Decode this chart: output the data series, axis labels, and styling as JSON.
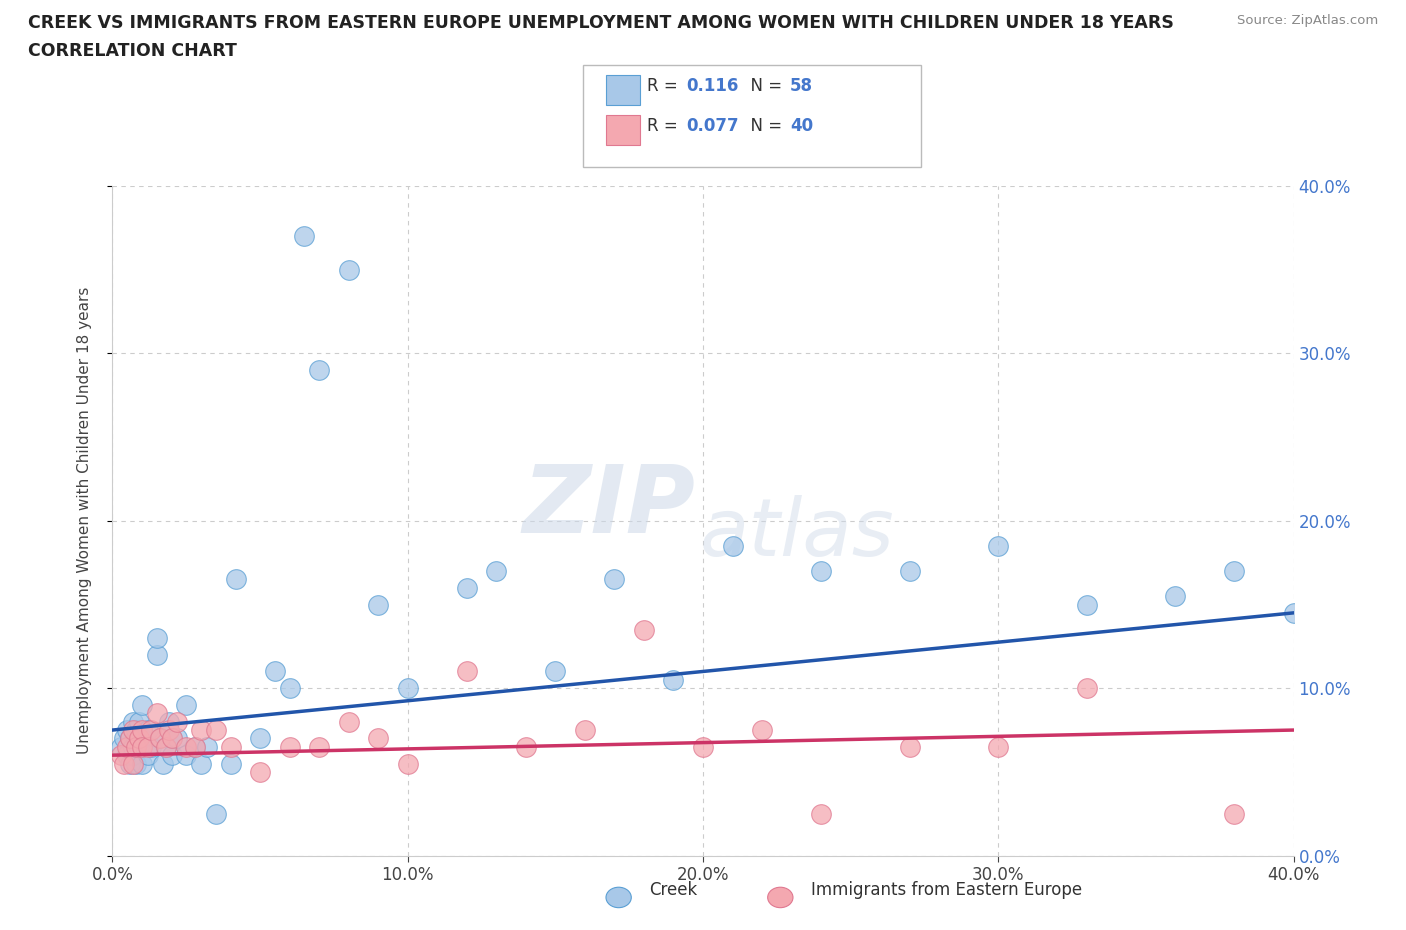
{
  "title_line1": "CREEK VS IMMIGRANTS FROM EASTERN EUROPE UNEMPLOYMENT AMONG WOMEN WITH CHILDREN UNDER 18 YEARS",
  "title_line2": "CORRELATION CHART",
  "source_text": "Source: ZipAtlas.com",
  "ylabel": "Unemployment Among Women with Children Under 18 years",
  "xlim": [
    0.0,
    0.4
  ],
  "ylim": [
    0.0,
    0.4
  ],
  "xtick_labels": [
    "0.0%",
    "10.0%",
    "20.0%",
    "30.0%",
    "40.0%"
  ],
  "ytick_labels_right": [
    "0.0%",
    "10.0%",
    "20.0%",
    "30.0%",
    "40.0%"
  ],
  "xtick_vals": [
    0.0,
    0.1,
    0.2,
    0.3,
    0.4
  ],
  "ytick_vals": [
    0.0,
    0.1,
    0.2,
    0.3,
    0.4
  ],
  "creek_color": "#a8c8e8",
  "immigrant_color": "#f4a8b0",
  "creek_edge_color": "#5a9fd4",
  "immigrant_edge_color": "#e07890",
  "line_creek_color": "#2255aa",
  "line_immigrant_color": "#cc3366",
  "R_creek": 0.116,
  "N_creek": 58,
  "R_immigrant": 0.077,
  "N_immigrant": 40,
  "legend_label_creek": "Creek",
  "legend_label_immigrant": "Immigrants from Eastern Europe",
  "watermark_zip": "ZIP",
  "watermark_atlas": "atlas",
  "background_color": "#ffffff",
  "grid_color": "#cccccc",
  "right_tick_color": "#4477cc",
  "creek_line_start": 0.075,
  "creek_line_end": 0.145,
  "immigrant_line_start": 0.06,
  "immigrant_line_end": 0.075,
  "creek_x": [
    0.003,
    0.004,
    0.005,
    0.005,
    0.006,
    0.006,
    0.007,
    0.007,
    0.007,
    0.008,
    0.008,
    0.008,
    0.009,
    0.009,
    0.01,
    0.01,
    0.01,
    0.012,
    0.012,
    0.013,
    0.015,
    0.015,
    0.016,
    0.017,
    0.018,
    0.019,
    0.02,
    0.02,
    0.022,
    0.025,
    0.025,
    0.028,
    0.03,
    0.032,
    0.035,
    0.04,
    0.042,
    0.05,
    0.055,
    0.06,
    0.065,
    0.07,
    0.08,
    0.09,
    0.1,
    0.12,
    0.13,
    0.15,
    0.17,
    0.19,
    0.21,
    0.24,
    0.27,
    0.3,
    0.33,
    0.36,
    0.38,
    0.4
  ],
  "creek_y": [
    0.065,
    0.07,
    0.06,
    0.075,
    0.055,
    0.07,
    0.06,
    0.065,
    0.08,
    0.055,
    0.07,
    0.075,
    0.065,
    0.08,
    0.055,
    0.07,
    0.09,
    0.06,
    0.075,
    0.065,
    0.12,
    0.13,
    0.07,
    0.055,
    0.065,
    0.08,
    0.06,
    0.07,
    0.07,
    0.06,
    0.09,
    0.065,
    0.055,
    0.065,
    0.025,
    0.055,
    0.165,
    0.07,
    0.11,
    0.1,
    0.37,
    0.29,
    0.35,
    0.15,
    0.1,
    0.16,
    0.17,
    0.11,
    0.165,
    0.105,
    0.185,
    0.17,
    0.17,
    0.185,
    0.15,
    0.155,
    0.17,
    0.145
  ],
  "immigrant_x": [
    0.003,
    0.004,
    0.005,
    0.006,
    0.007,
    0.007,
    0.008,
    0.009,
    0.01,
    0.01,
    0.012,
    0.013,
    0.015,
    0.016,
    0.018,
    0.019,
    0.02,
    0.022,
    0.025,
    0.028,
    0.03,
    0.035,
    0.04,
    0.05,
    0.06,
    0.07,
    0.08,
    0.09,
    0.1,
    0.12,
    0.14,
    0.16,
    0.18,
    0.2,
    0.22,
    0.24,
    0.27,
    0.3,
    0.33,
    0.38
  ],
  "immigrant_y": [
    0.06,
    0.055,
    0.065,
    0.07,
    0.055,
    0.075,
    0.065,
    0.07,
    0.075,
    0.065,
    0.065,
    0.075,
    0.085,
    0.07,
    0.065,
    0.075,
    0.07,
    0.08,
    0.065,
    0.065,
    0.075,
    0.075,
    0.065,
    0.05,
    0.065,
    0.065,
    0.08,
    0.07,
    0.055,
    0.11,
    0.065,
    0.075,
    0.135,
    0.065,
    0.075,
    0.025,
    0.065,
    0.065,
    0.1,
    0.025
  ]
}
